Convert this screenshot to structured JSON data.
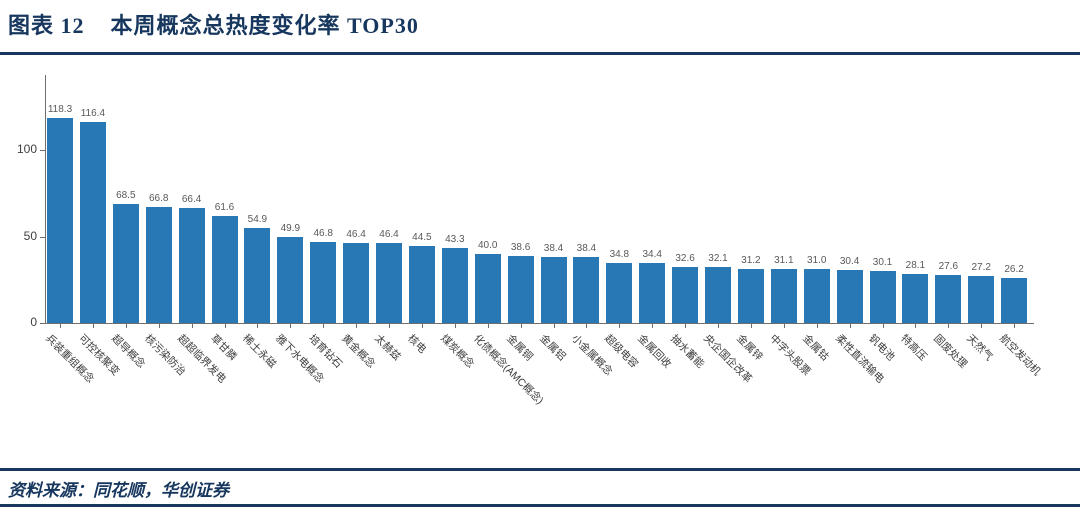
{
  "header": {
    "figure_label": "图表 12",
    "title": "本周概念总热度变化率 TOP30"
  },
  "footer": {
    "source_text": "资料来源：同花顺，华创证券"
  },
  "colors": {
    "accent_navy": "#17375E",
    "bar_blue": "#2878B5",
    "value_label_gray": "#595959",
    "axis_gray": "#6e6e6e"
  },
  "chart_data": {
    "type": "bar",
    "title": "本周概念总热度变化率 TOP30",
    "xlabel": "",
    "ylabel": "",
    "ylim": [
      0,
      140
    ],
    "yticks": [
      0,
      50,
      100
    ],
    "grid": false,
    "legend": "none",
    "value_labels": true,
    "bar_color": "#2878B5",
    "categories": [
      "兵装重组概念",
      "可控核聚变",
      "超导概念",
      "核污染防治",
      "超超临界发电",
      "草甘膦",
      "稀土永磁",
      "雅下水电概念",
      "培育钻石",
      "黄金概念",
      "太赫兹",
      "核电",
      "煤炭概念",
      "化债概念(AMC概念)",
      "金属铜",
      "金属铝",
      "小金属概念",
      "超级电容",
      "金属回收",
      "抽水蓄能",
      "央企国企改革",
      "金属锌",
      "中字头股票",
      "金属钴",
      "柔性直流输电",
      "钒电池",
      "特高压",
      "固废处理",
      "天然气",
      "航空发动机"
    ],
    "values": [
      118.3,
      116.4,
      68.5,
      66.8,
      66.4,
      61.6,
      54.9,
      49.9,
      46.8,
      46.4,
      46.4,
      44.5,
      43.3,
      40.0,
      38.6,
      38.4,
      38.4,
      34.8,
      34.4,
      32.6,
      32.1,
      31.2,
      31.1,
      31.0,
      30.4,
      30.1,
      28.1,
      27.6,
      27.2,
      26.2
    ]
  }
}
